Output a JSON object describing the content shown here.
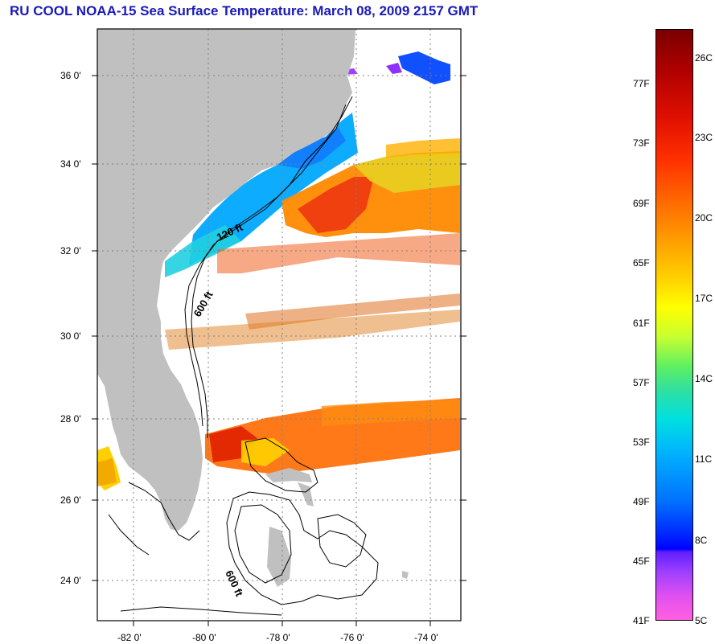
{
  "title": "RU COOL  NOAA-15  Sea Surface Temperature:  March 08, 2009 2157 GMT",
  "latitude_labels": [
    "36 0'",
    "34 0'",
    "32 0'",
    "30 0'",
    "28 0'",
    "26 0'",
    "24 0'"
  ],
  "longitude_labels": [
    "-82 0'",
    "-80 0'",
    "-78 0'",
    "-76 0'",
    "-74 0'"
  ],
  "contour_labels": {
    "shelf_120": "120 ft",
    "shelf_600_north": "600 ft",
    "shelf_600_south": "600 ft"
  },
  "colorbar": {
    "fahrenheit": [
      "77F",
      "73F",
      "69F",
      "65F",
      "61F",
      "57F",
      "53F",
      "49F",
      "45F",
      "41F"
    ],
    "celsius": [
      "26C",
      "23C",
      "20C",
      "17C",
      "14C",
      "11C",
      "8C",
      "5C"
    ],
    "colors": [
      "#7a0000",
      "#ff3000",
      "#ffd000",
      "#ffff00",
      "#60f060",
      "#00e0e0",
      "#0070ff",
      "#0000ff",
      "#a040ff",
      "#ff60e0"
    ]
  },
  "colors": {
    "title": "#1a1ab8",
    "land": "#c0c0c0",
    "cloud_mask": "#ffffff"
  }
}
